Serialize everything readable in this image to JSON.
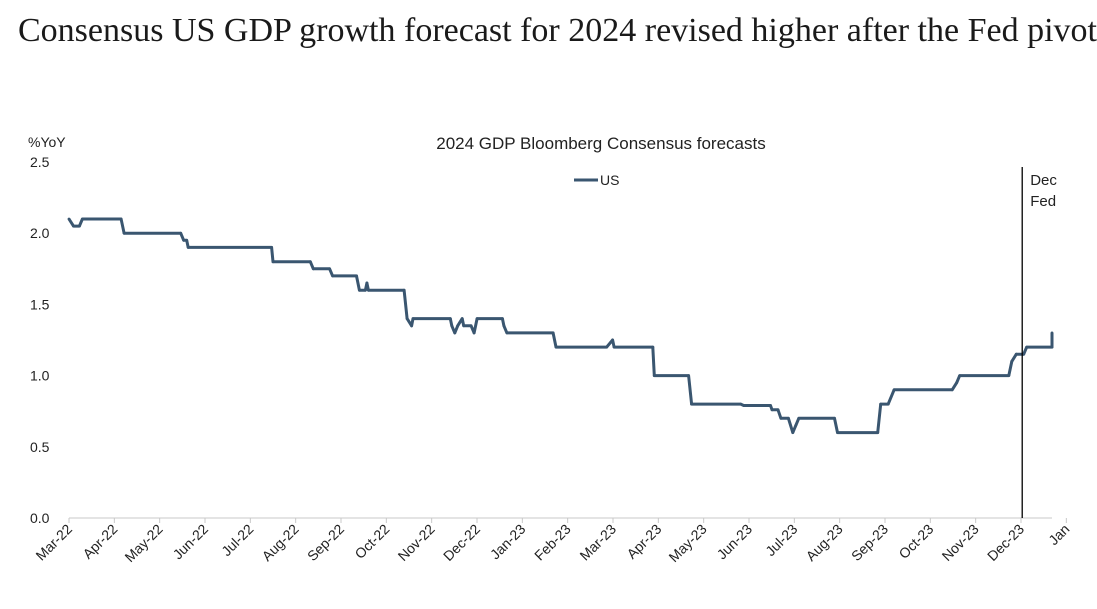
{
  "headline": "Consensus US GDP growth forecast for 2024 revised higher after the Fed pivot",
  "chart_data": {
    "type": "line",
    "title": "2024 GDP Bloomberg Consensus forecasts",
    "ylabel": "%YoY",
    "xlabel": "",
    "ylim": [
      0,
      2.5
    ],
    "yticks": [
      "0.0",
      "0.5",
      "1.0",
      "1.5",
      "2.0",
      "2.5"
    ],
    "xtick_labels": [
      "Mar-22",
      "Apr-22",
      "May-22",
      "Jun-22",
      "Jul-22",
      "Aug-22",
      "Sep-22",
      "Oct-22",
      "Nov-22",
      "Dec-22",
      "Jan-23",
      "Feb-23",
      "Mar-23",
      "Apr-23",
      "May-23",
      "Jun-23",
      "Jul-23",
      "Aug-23",
      "Sep-23",
      "Oct-23",
      "Nov-23",
      "Dec-23",
      "Jan"
    ],
    "legend_position": "top-center",
    "grid": false,
    "series": [
      {
        "name": "US",
        "color": "#3a5670",
        "points": [
          [
            "2022-03-01",
            2.1
          ],
          [
            "2022-03-04",
            2.05
          ],
          [
            "2022-03-08",
            2.05
          ],
          [
            "2022-03-10",
            2.1
          ],
          [
            "2022-04-05",
            2.1
          ],
          [
            "2022-04-07",
            2.0
          ],
          [
            "2022-05-15",
            2.0
          ],
          [
            "2022-05-17",
            1.95
          ],
          [
            "2022-05-19",
            1.95
          ],
          [
            "2022-05-20",
            1.9
          ],
          [
            "2022-07-15",
            1.9
          ],
          [
            "2022-07-16",
            1.8
          ],
          [
            "2022-08-10",
            1.8
          ],
          [
            "2022-08-12",
            1.75
          ],
          [
            "2022-08-23",
            1.75
          ],
          [
            "2022-08-25",
            1.7
          ],
          [
            "2022-09-10",
            1.7
          ],
          [
            "2022-09-12",
            1.6
          ],
          [
            "2022-09-16",
            1.6
          ],
          [
            "2022-09-17",
            1.65
          ],
          [
            "2022-09-18",
            1.6
          ],
          [
            "2022-10-12",
            1.6
          ],
          [
            "2022-10-14",
            1.4
          ],
          [
            "2022-10-17",
            1.35
          ],
          [
            "2022-10-18",
            1.4
          ],
          [
            "2022-11-12",
            1.4
          ],
          [
            "2022-11-13",
            1.35
          ],
          [
            "2022-11-15",
            1.3
          ],
          [
            "2022-11-17",
            1.35
          ],
          [
            "2022-11-20",
            1.4
          ],
          [
            "2022-11-21",
            1.35
          ],
          [
            "2022-11-26",
            1.35
          ],
          [
            "2022-11-28",
            1.3
          ],
          [
            "2022-11-30",
            1.4
          ],
          [
            "2022-12-17",
            1.4
          ],
          [
            "2022-12-18",
            1.35
          ],
          [
            "2022-12-20",
            1.3
          ],
          [
            "2023-01-20",
            1.3
          ],
          [
            "2023-01-22",
            1.2
          ],
          [
            "2023-02-25",
            1.2
          ],
          [
            "2023-03-01",
            1.25
          ],
          [
            "2023-03-02",
            1.2
          ],
          [
            "2023-03-28",
            1.2
          ],
          [
            "2023-03-29",
            1.0
          ],
          [
            "2023-04-21",
            1.0
          ],
          [
            "2023-04-23",
            0.8
          ],
          [
            "2023-05-26",
            0.8
          ],
          [
            "2023-05-28",
            0.79
          ],
          [
            "2023-06-15",
            0.79
          ],
          [
            "2023-06-16",
            0.76
          ],
          [
            "2023-06-20",
            0.76
          ],
          [
            "2023-06-22",
            0.7
          ],
          [
            "2023-06-27",
            0.7
          ],
          [
            "2023-06-30",
            0.6
          ],
          [
            "2023-07-02",
            0.65
          ],
          [
            "2023-07-04",
            0.7
          ],
          [
            "2023-07-28",
            0.7
          ],
          [
            "2023-07-30",
            0.6
          ],
          [
            "2023-08-26",
            0.6
          ],
          [
            "2023-08-28",
            0.8
          ],
          [
            "2023-09-02",
            0.8
          ],
          [
            "2023-09-06",
            0.9
          ],
          [
            "2023-10-15",
            0.9
          ],
          [
            "2023-10-18",
            0.95
          ],
          [
            "2023-10-20",
            1.0
          ],
          [
            "2023-11-22",
            1.0
          ],
          [
            "2023-11-24",
            1.1
          ],
          [
            "2023-11-27",
            1.15
          ],
          [
            "2023-12-02",
            1.15
          ],
          [
            "2023-12-04",
            1.2
          ],
          [
            "2023-12-25",
            1.2
          ],
          [
            "2023-12-26",
            1.3
          ]
        ]
      }
    ],
    "annotation": {
      "date": "2023-12-01",
      "label_lines": [
        "Dec",
        "Fed"
      ]
    }
  }
}
